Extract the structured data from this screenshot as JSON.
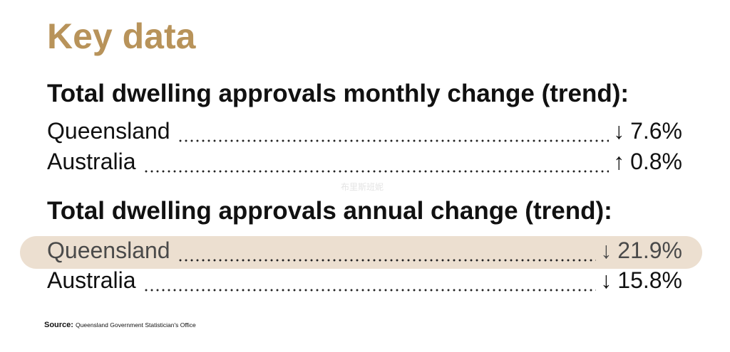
{
  "title": "Key data",
  "watermark": "布里斯班妮",
  "sections": [
    {
      "heading": "Total dwelling approvals monthly change (trend):",
      "rows": [
        {
          "label": "Queensland",
          "arrow": "↓",
          "value": "7.6%"
        },
        {
          "label": "Australia",
          "arrow": "↑",
          "value": "0.8%"
        }
      ]
    },
    {
      "heading": "Total dwelling approvals annual change (trend):",
      "rows": [
        {
          "label": "Queensland",
          "arrow": "↓",
          "value": "21.9%"
        },
        {
          "label": "Australia",
          "arrow": "↓",
          "value": "15.8%"
        }
      ]
    }
  ],
  "source": {
    "label": "Source:",
    "text": "Queensland Government Statistician's Office"
  }
}
